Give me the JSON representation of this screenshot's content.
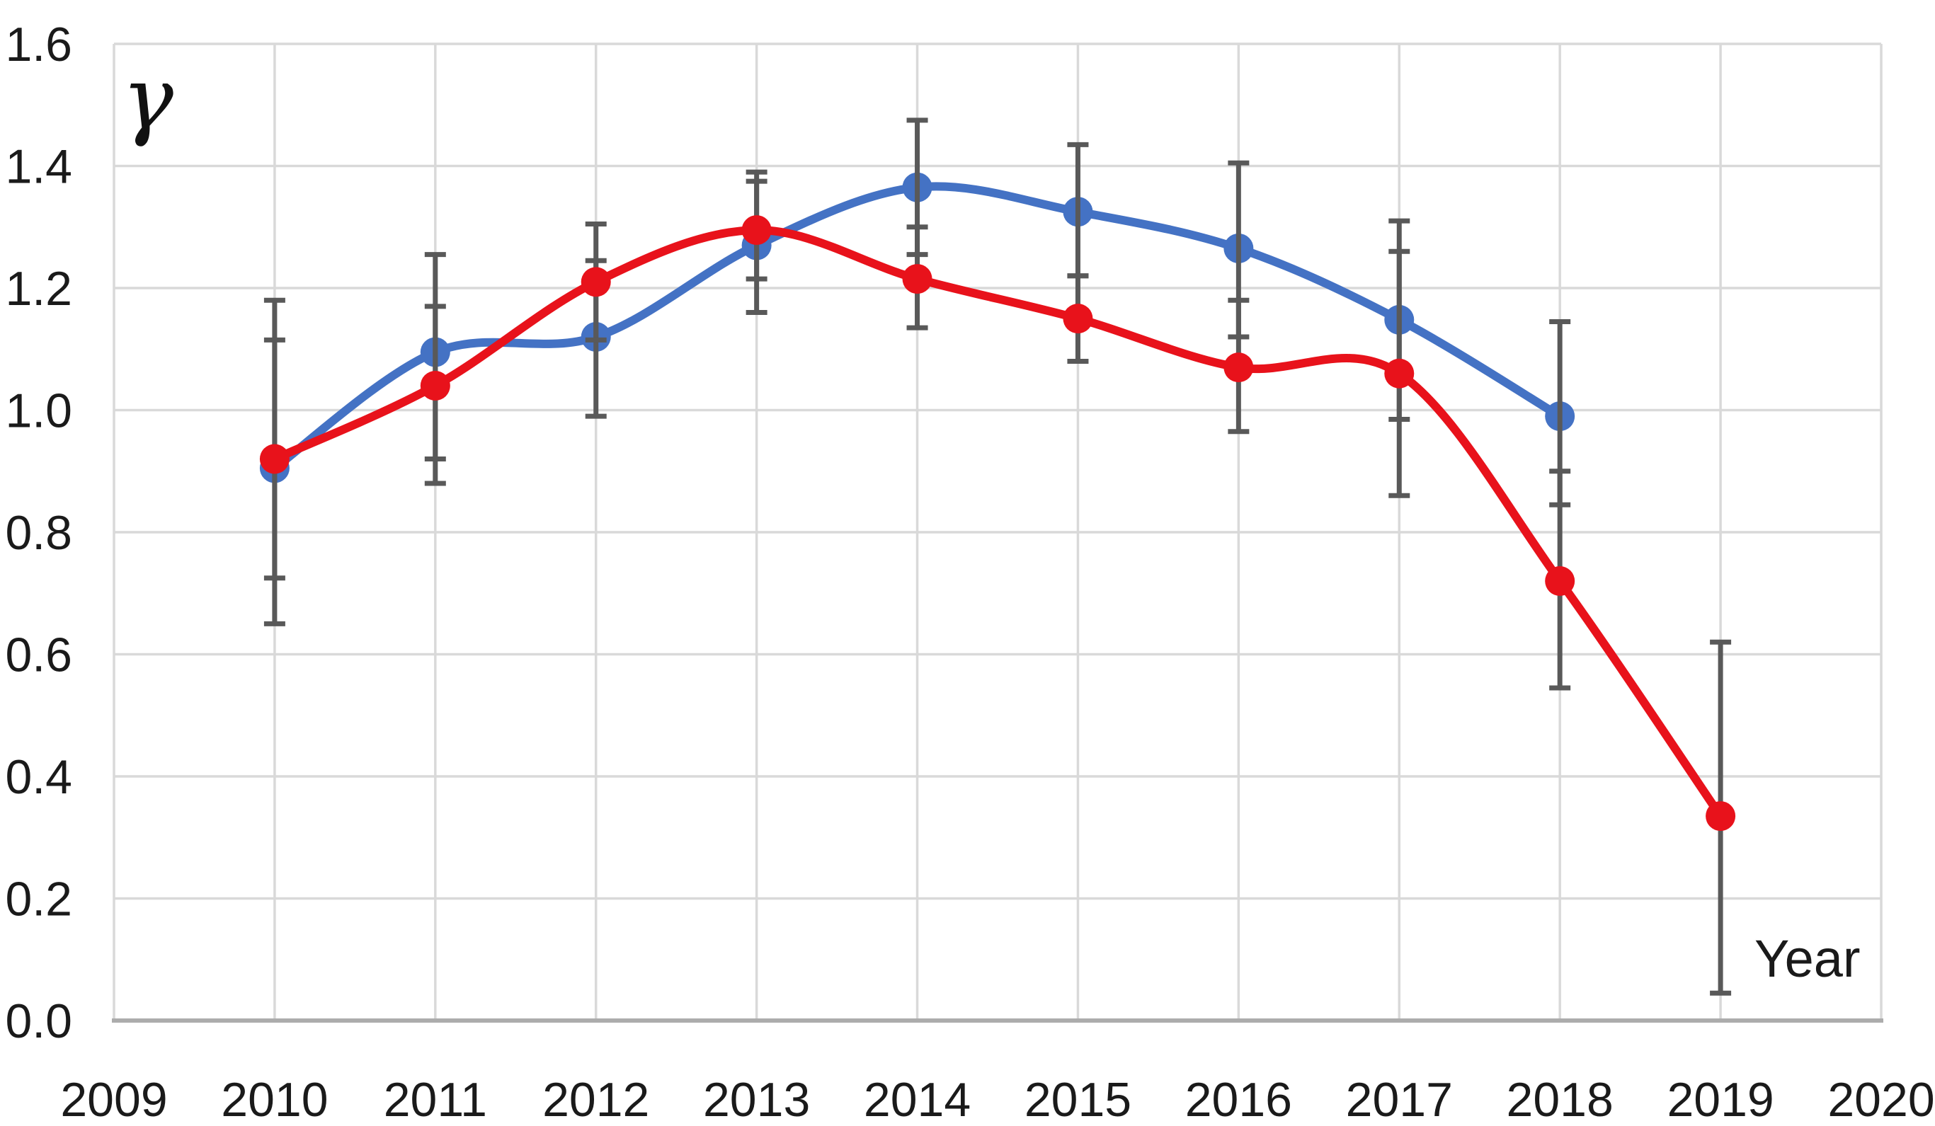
{
  "chart_data": {
    "type": "line",
    "title": "",
    "y_axis_title": "γ",
    "x_axis_title": "Year",
    "xlim": [
      2009,
      2020
    ],
    "ylim": [
      0.0,
      1.6
    ],
    "x_ticks": [
      "2009",
      "2010",
      "2011",
      "2012",
      "2013",
      "2014",
      "2015",
      "2016",
      "2017",
      "2018",
      "2019",
      "2020"
    ],
    "y_ticks": [
      0.0,
      0.2,
      0.4,
      0.6,
      0.8,
      1.0,
      1.2,
      1.4,
      1.6
    ],
    "y_tick_labels": [
      "0.0",
      "0.2",
      "0.4",
      "0.6",
      "0.8",
      "1.0",
      "1.2",
      "1.4",
      "1.6"
    ],
    "grid": true,
    "legend": "none",
    "smooth_lines": true,
    "series": [
      {
        "name": "blue-series",
        "color": "#4472C4",
        "x": [
          2010,
          2011,
          2012,
          2013,
          2014,
          2015,
          2016,
          2017,
          2018
        ],
        "values": [
          0.905,
          1.095,
          1.12,
          1.27,
          1.365,
          1.325,
          1.265,
          1.148,
          0.99
        ],
        "error_low": [
          0.65,
          0.92,
          0.99,
          1.16,
          1.255,
          1.22,
          1.12,
          0.985,
          0.845
        ],
        "error_high": [
          1.18,
          1.255,
          1.245,
          1.39,
          1.475,
          1.435,
          1.405,
          1.31,
          1.145
        ]
      },
      {
        "name": "red-series",
        "color": "#E8121B",
        "x": [
          2010,
          2011,
          2012,
          2013,
          2014,
          2015,
          2016,
          2017,
          2018,
          2019
        ],
        "values": [
          0.92,
          1.04,
          1.21,
          1.295,
          1.215,
          1.15,
          1.07,
          1.06,
          0.72,
          0.335
        ],
        "error_low": [
          0.725,
          0.88,
          1.115,
          1.215,
          1.135,
          1.08,
          0.965,
          0.86,
          0.545,
          0.045
        ],
        "error_high": [
          1.115,
          1.17,
          1.305,
          1.375,
          1.3,
          1.22,
          1.18,
          1.26,
          0.9,
          0.62
        ]
      }
    ],
    "colors": {
      "gridline": "#D9D9D9",
      "axis_line": "#ACACAC",
      "error_bar": "#595959",
      "tick_text": "#1A1A1A"
    }
  }
}
